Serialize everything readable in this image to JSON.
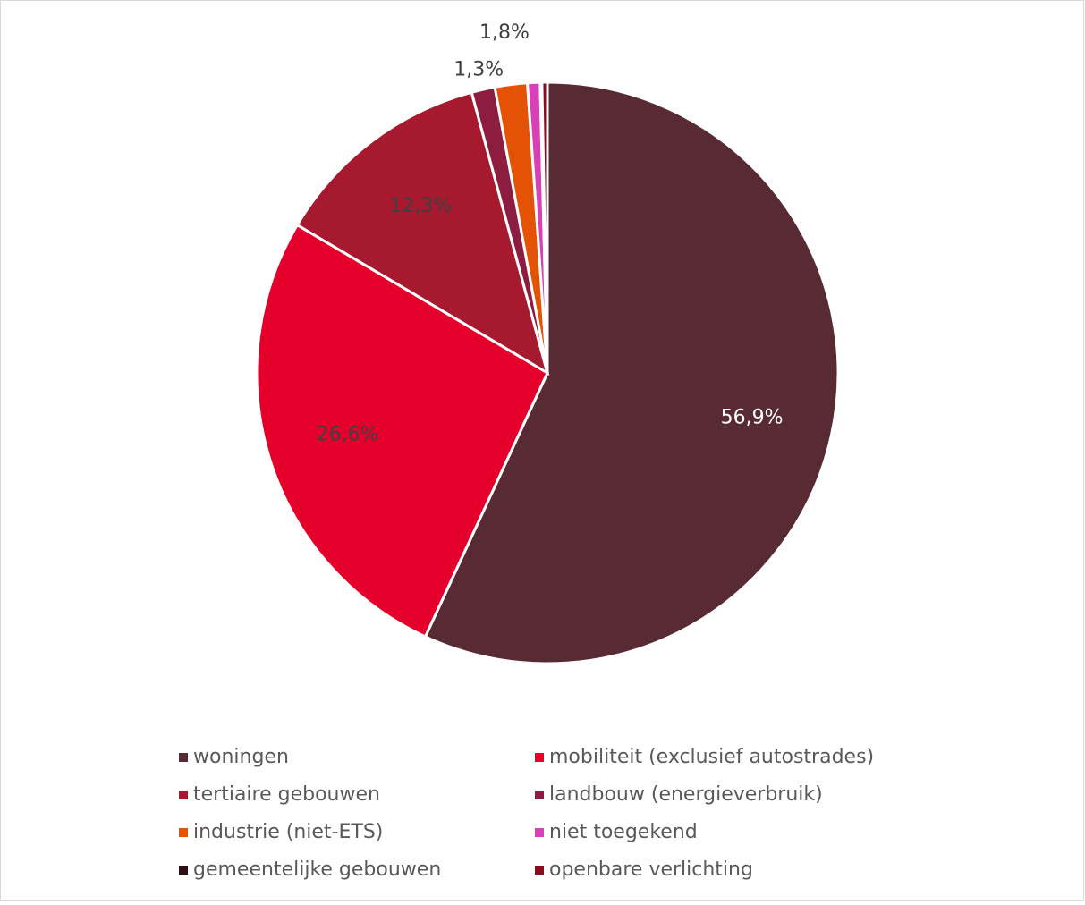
{
  "chart_data": {
    "type": "pie",
    "categories": [
      "woningen",
      "mobiliteit (exclusief autostrades)",
      "tertiaire gebouwen",
      "landbouw (energieverbruik)",
      "industrie (niet-ETS)",
      "niet toegekend",
      "gemeentelijke gebouwen",
      "openbare verlichting"
    ],
    "values": [
      56.9,
      26.6,
      12.3,
      1.3,
      1.8,
      0.7,
      0.1,
      0.3
    ],
    "value_labels": [
      "56,9%",
      "26,6%",
      "12,3%",
      "1,3%",
      "1,8%",
      null,
      null,
      null
    ],
    "colors": [
      "#582a33",
      "#e4002b",
      "#a6192e",
      "#8c1d40",
      "#e35205",
      "#d93fb6",
      "#2d0f14",
      "#8b0a1e"
    ],
    "legend": "bottom"
  }
}
